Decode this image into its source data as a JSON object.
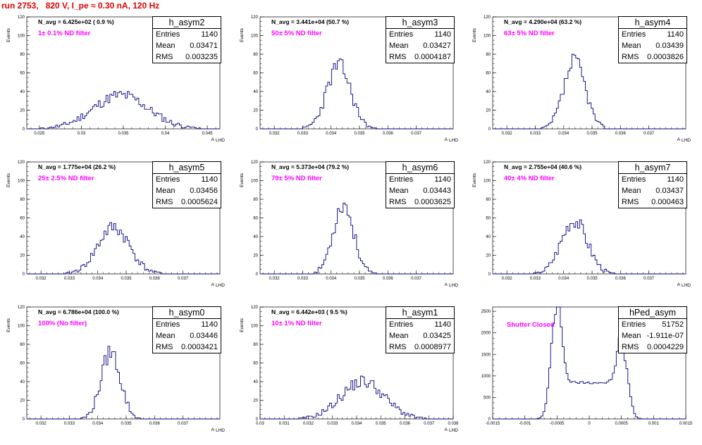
{
  "header": {
    "title": "run 2753,   820 V, I_pe ≈ 0.30 nA, 120 Hz"
  },
  "colors": {
    "title": "#e00000",
    "histogram": "#00007f",
    "annotation": "#ff00ff"
  },
  "chart_data": [
    {
      "type": "histogram",
      "name": "h_asym2",
      "navg": "N_avg = 6.425e+02 ( 0.9 %)",
      "filter": "1± 0.1% ND filter",
      "stats": {
        "entries": "1140",
        "mean": "0.03471",
        "rms": "0.003235"
      },
      "ylabel": "Events",
      "xlabel": "A",
      "xlim": [
        0.0235,
        0.0465
      ],
      "ylim": [
        0,
        120
      ],
      "xticks": [
        "0.025",
        "0.03",
        "0.035",
        "0.04",
        "0.045"
      ],
      "yticks": [
        "0",
        "20",
        "40",
        "60",
        "80",
        "100",
        "120"
      ],
      "shape": {
        "mean": 0.0347,
        "sigma": 0.0033,
        "peak": 36,
        "bins": 100,
        "seed": 11
      }
    },
    {
      "type": "histogram",
      "name": "h_asym3",
      "navg": "N_avg = 3.441e+04 (50.7 %)",
      "filter": "50± 5% ND filter",
      "stats": {
        "entries": "1140",
        "mean": "0.03427",
        "rms": "0.0004187"
      },
      "ylabel": "Events",
      "xlabel": "A",
      "xlim": [
        0.0315,
        0.0383
      ],
      "ylim": [
        0,
        120
      ],
      "xticks": [
        "0.032",
        "0.033",
        "0.034",
        "0.035",
        "0.036",
        "0.037"
      ],
      "yticks": [
        "0",
        "20",
        "40",
        "60",
        "80",
        "100",
        "120"
      ],
      "shape": {
        "mean": 0.03427,
        "sigma": 0.00042,
        "peak": 68,
        "bins": 100,
        "seed": 23
      }
    },
    {
      "type": "histogram",
      "name": "h_asym4",
      "navg": "N_avg = 4.290e+04 (63.2 %)",
      "filter": "63± 5% ND filter",
      "stats": {
        "entries": "1140",
        "mean": "0.03439",
        "rms": "0.0003826"
      },
      "ylabel": "Events",
      "xlabel": "A",
      "xlim": [
        0.0315,
        0.0383
      ],
      "ylim": [
        0,
        120
      ],
      "xticks": [
        "0.032",
        "0.033",
        "0.034",
        "0.035",
        "0.036",
        "0.037"
      ],
      "yticks": [
        "0",
        "20",
        "40",
        "60",
        "80",
        "100",
        "120"
      ],
      "shape": {
        "mean": 0.03439,
        "sigma": 0.00038,
        "peak": 72,
        "bins": 100,
        "seed": 37
      }
    },
    {
      "type": "histogram",
      "name": "h_asym5",
      "navg": "N_avg = 1.775e+04 (26.2 %)",
      "filter": "25± 2.5% ND filter",
      "stats": {
        "entries": "1140",
        "mean": "0.03456",
        "rms": "0.0005624"
      },
      "ylabel": "Events",
      "xlabel": "A",
      "xlim": [
        0.0315,
        0.0383
      ],
      "ylim": [
        0,
        120
      ],
      "xticks": [
        "0.032",
        "0.033",
        "0.034",
        "0.035",
        "0.036",
        "0.037"
      ],
      "yticks": [
        "0",
        "20",
        "40",
        "60",
        "80",
        "100",
        "120"
      ],
      "shape": {
        "mean": 0.03456,
        "sigma": 0.00056,
        "peak": 50,
        "bins": 100,
        "seed": 41
      }
    },
    {
      "type": "histogram",
      "name": "h_asym6",
      "navg": "N_avg = 5.373e+04 (79.2 %)",
      "filter": "79± 5% ND filter",
      "stats": {
        "entries": "1140",
        "mean": "0.03443",
        "rms": "0.0003625"
      },
      "ylabel": "Events",
      "xlabel": "A",
      "xlim": [
        0.0315,
        0.0383
      ],
      "ylim": [
        0,
        120
      ],
      "xticks": [
        "0.032",
        "0.033",
        "0.034",
        "0.035",
        "0.036",
        "0.037"
      ],
      "yticks": [
        "0",
        "20",
        "40",
        "60",
        "80",
        "100",
        "120"
      ],
      "shape": {
        "mean": 0.03443,
        "sigma": 0.00036,
        "peak": 75,
        "bins": 100,
        "seed": 53
      }
    },
    {
      "type": "histogram",
      "name": "h_asym7",
      "navg": "N_avg = 2.755e+04 (40.6 %)",
      "filter": "40± 4% ND filter",
      "stats": {
        "entries": "1140",
        "mean": "0.03437",
        "rms": "0.000463"
      },
      "ylabel": "Events",
      "xlabel": "A",
      "xlim": [
        0.0315,
        0.0383
      ],
      "ylim": [
        0,
        120
      ],
      "xticks": [
        "0.032",
        "0.033",
        "0.034",
        "0.035",
        "0.036",
        "0.037"
      ],
      "yticks": [
        "0",
        "20",
        "40",
        "60",
        "80",
        "100",
        "120"
      ],
      "shape": {
        "mean": 0.03437,
        "sigma": 0.00046,
        "peak": 58,
        "bins": 100,
        "seed": 67
      }
    },
    {
      "type": "histogram",
      "name": "h_asym0",
      "navg": "N_avg = 6.786e+04 (100.0 %)",
      "filter": "100% (No filter)",
      "stats": {
        "entries": "1140",
        "mean": "0.03446",
        "rms": "0.0003421"
      },
      "ylabel": "Events",
      "xlabel": "A",
      "xlim": [
        0.0315,
        0.0383
      ],
      "ylim": [
        0,
        120
      ],
      "xticks": [
        "0.032",
        "0.033",
        "0.034",
        "0.035",
        "0.036",
        "0.037"
      ],
      "yticks": [
        "0",
        "20",
        "40",
        "60",
        "80",
        "100",
        "120"
      ],
      "shape": {
        "mean": 0.03446,
        "sigma": 0.00034,
        "peak": 72,
        "bins": 100,
        "seed": 79
      }
    },
    {
      "type": "histogram",
      "name": "h_asym1",
      "navg": "N_avg = 6.442e+03 ( 9.5 %)",
      "filter": "10± 1% ND filter",
      "stats": {
        "entries": "1140",
        "mean": "0.03425",
        "rms": "0.0008977"
      },
      "ylabel": "Events",
      "xlabel": "A",
      "xlim": [
        0.03,
        0.038
      ],
      "ylim": [
        0,
        120
      ],
      "xticks": [
        "0.03",
        "0.031",
        "0.032",
        "0.033",
        "0.034",
        "0.035",
        "0.036",
        "0.037",
        "0.038"
      ],
      "yticks": [
        "0",
        "20",
        "40",
        "60",
        "80",
        "100",
        "120"
      ],
      "shape": {
        "mean": 0.03425,
        "sigma": 0.0009,
        "peak": 40,
        "bins": 100,
        "seed": 91
      }
    },
    {
      "type": "histogram",
      "name": "hPed_asym",
      "navg": "",
      "filter": "Shutter Closed",
      "stats": {
        "entries": "51752",
        "mean": "-1.911e-07",
        "rms": "0.0004229"
      },
      "ylabel": "",
      "xlabel": "",
      "xlim": [
        -0.0015,
        0.0015
      ],
      "ylim": [
        0,
        2600
      ],
      "xticks": [
        "-0.0015",
        "-0.001",
        "-0.0005",
        "0",
        "0.0005",
        "0.001",
        "0.0015"
      ],
      "yticks": [
        "0",
        "500",
        "1000",
        "1500",
        "2000",
        "2500"
      ],
      "shape": {
        "bimodal": true,
        "left": -0.00052,
        "right": 0.00053,
        "sigma": 8e-05,
        "peak": 2400,
        "rpeak": 1450,
        "plateau": 850,
        "bins": 100,
        "seed": 97
      }
    }
  ]
}
